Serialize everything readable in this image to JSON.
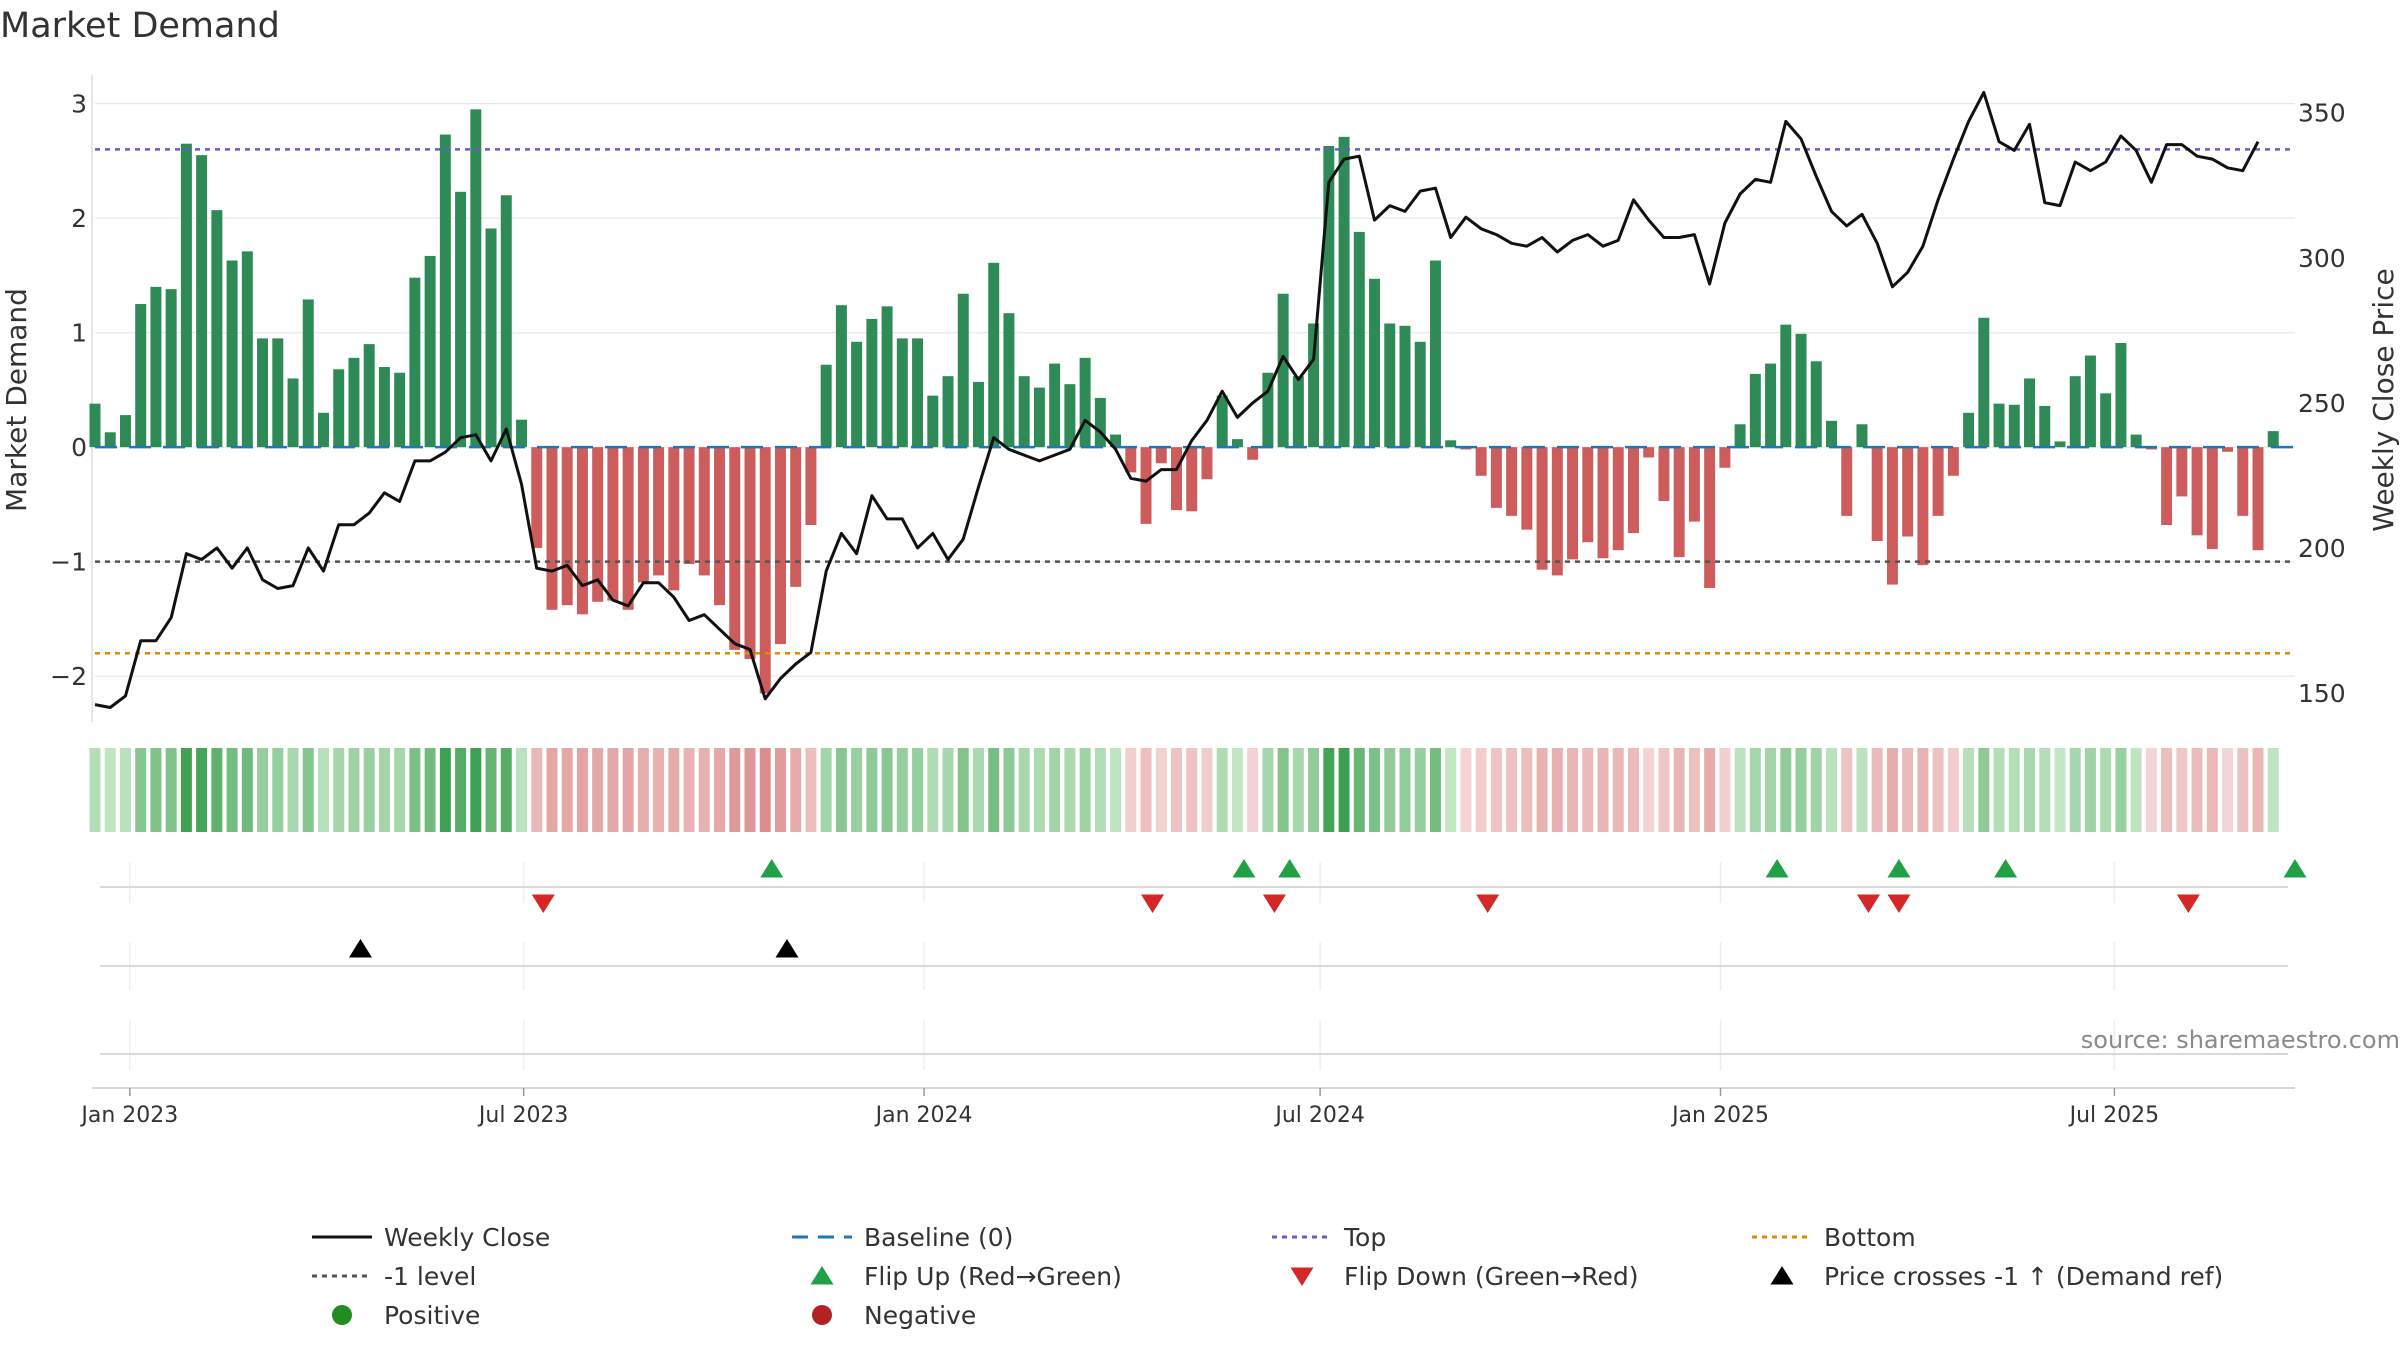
{
  "colors": {
    "positive_bar": "#2e8b57",
    "negative_bar": "#cd5c5c",
    "price_line": "#111111",
    "baseline": "#1f77b4",
    "top_line": "#6a5acd",
    "bottom_line": "#e08a00",
    "minus_one_line": "#555555",
    "flip_up": "#22a046",
    "flip_down": "#d62728",
    "cross_marker": "#000000",
    "positive_dot": "#228b22",
    "negative_dot": "#b22222",
    "grid": "#e8e8e8",
    "text": "#333333"
  },
  "chart_data": {
    "type": "bar+line",
    "title": "Market Demand",
    "ylabel": "Market Demand",
    "ylabel_right": "Weekly Close Price",
    "ylim": [
      -2.4,
      3.25
    ],
    "yticks": [
      -2,
      -1,
      0,
      1,
      2,
      3
    ],
    "ytick_labels": [
      "−2",
      "−1",
      "0",
      "1",
      "2",
      "3"
    ],
    "ylim_right": [
      140,
      363
    ],
    "yticks_right": [
      150,
      200,
      250,
      300,
      350
    ],
    "date_range": [
      "2022-12-16",
      "2025-09-22"
    ],
    "xticks": [
      {
        "date": "2023-01-01",
        "label": "Jan 2023"
      },
      {
        "date": "2023-07-01",
        "label": "Jul 2023"
      },
      {
        "date": "2024-01-01",
        "label": "Jan 2024"
      },
      {
        "date": "2024-07-01",
        "label": "Jul 2024"
      },
      {
        "date": "2025-01-01",
        "label": "Jan 2025"
      },
      {
        "date": "2025-07-01",
        "label": "Jul 2025"
      }
    ],
    "levels": {
      "top": 2.6,
      "bottom": -1.8,
      "minus_one": -1.0,
      "baseline": 0
    },
    "start_date": "2022-12-16",
    "week_days": 7,
    "demand": [
      0.38,
      0.13,
      0.28,
      1.25,
      1.4,
      1.38,
      2.65,
      2.55,
      2.07,
      1.63,
      1.71,
      0.95,
      0.95,
      0.6,
      1.29,
      0.3,
      0.68,
      0.78,
      0.9,
      0.7,
      0.65,
      1.48,
      1.67,
      2.73,
      2.23,
      2.95,
      1.91,
      2.2,
      0.24,
      -0.88,
      -1.42,
      -1.38,
      -1.46,
      -1.35,
      -1.34,
      -1.42,
      -1.18,
      -1.12,
      -1.25,
      -1.02,
      -1.12,
      -1.38,
      -1.77,
      -1.85,
      -2.15,
      -1.72,
      -1.22,
      -0.68,
      0.72,
      1.24,
      0.92,
      1.12,
      1.23,
      0.95,
      0.95,
      0.45,
      0.62,
      1.34,
      0.57,
      1.61,
      1.17,
      0.62,
      0.52,
      0.73,
      0.55,
      0.78,
      0.43,
      0.11,
      -0.22,
      -0.67,
      -0.14,
      -0.55,
      -0.56,
      -0.28,
      0.45,
      0.07,
      -0.11,
      0.65,
      1.34,
      0.62,
      1.08,
      2.63,
      2.71,
      1.88,
      1.47,
      1.08,
      1.06,
      0.92,
      1.63,
      0.06,
      -0.02,
      -0.25,
      -0.53,
      -0.6,
      -0.72,
      -1.07,
      -1.12,
      -0.98,
      -0.83,
      -0.97,
      -0.9,
      -0.75,
      -0.09,
      -0.47,
      -0.96,
      -0.65,
      -1.23,
      -0.18,
      0.2,
      0.64,
      0.73,
      1.07,
      0.99,
      0.75,
      0.23,
      -0.6,
      0.2,
      -0.82,
      -1.2,
      -0.78,
      -1.03,
      -0.6,
      -0.25,
      0.3,
      1.13,
      0.38,
      0.37,
      0.6,
      0.36,
      0.05,
      0.62,
      0.8,
      0.47,
      0.91,
      0.11,
      -0.02,
      -0.68,
      -0.43,
      -0.77,
      -0.89,
      -0.04,
      -0.6,
      -0.9,
      0.14
    ],
    "price": [
      146,
      145,
      149,
      168,
      168,
      176,
      198,
      196,
      200,
      193,
      200,
      189,
      186,
      187,
      200,
      192,
      208,
      208,
      212,
      219,
      216,
      230,
      230,
      233,
      238,
      239,
      230,
      241,
      222,
      193,
      192,
      194,
      187,
      189,
      182,
      180,
      188,
      188,
      183,
      175,
      177,
      172,
      167,
      165,
      148,
      155,
      160,
      164,
      192,
      205,
      198,
      218,
      210,
      210,
      200,
      205,
      196,
      203,
      221,
      238,
      234,
      232,
      230,
      232,
      234,
      244,
      240,
      234,
      224,
      223,
      227,
      227,
      237,
      244,
      254,
      245,
      250,
      254,
      266,
      258,
      265,
      326,
      334,
      335,
      313,
      318,
      316,
      323,
      324,
      307,
      314,
      310,
      308,
      305,
      304,
      307,
      302,
      306,
      308,
      304,
      306,
      320,
      313,
      307,
      307,
      308,
      291,
      312,
      322,
      327,
      326,
      347,
      341,
      328,
      316,
      311,
      315,
      305,
      290,
      295,
      304,
      320,
      334,
      347,
      357,
      340,
      337,
      346,
      319,
      318,
      333,
      330,
      333,
      342,
      337,
      326,
      339,
      339,
      335,
      334,
      331,
      330,
      340
    ],
    "flip_up_dates": [
      "2023-10-23",
      "2024-05-27",
      "2024-06-17",
      "2025-01-27",
      "2025-03-24",
      "2025-05-12",
      "2025-09-22"
    ],
    "flip_down_dates": [
      "2023-07-10",
      "2024-04-15",
      "2024-06-10",
      "2024-09-16",
      "2025-03-10",
      "2025-03-24",
      "2025-08-04"
    ],
    "cross_dates": [
      "2023-04-17",
      "2023-10-30"
    ],
    "legend": [
      {
        "label": "Weekly Close",
        "kind": "solid",
        "color_key": "price_line"
      },
      {
        "label": "Baseline (0)",
        "kind": "dash",
        "color_key": "baseline"
      },
      {
        "label": "Top",
        "kind": "dot",
        "color_key": "top_line"
      },
      {
        "label": "Bottom",
        "kind": "dot",
        "color_key": "bottom_line"
      },
      {
        "label": "-1 level",
        "kind": "dot",
        "color_key": "minus_one_line"
      },
      {
        "label": "Flip Up (Red→Green)",
        "kind": "tri-up",
        "color_key": "flip_up"
      },
      {
        "label": "Flip Down (Green→Red)",
        "kind": "tri-down",
        "color_key": "flip_down"
      },
      {
        "label": "Price crosses -1 ↑ (Demand ref)",
        "kind": "tri-up",
        "color_key": "cross_marker"
      },
      {
        "label": "Positive",
        "kind": "circle",
        "color_key": "positive_dot"
      },
      {
        "label": "Negative",
        "kind": "circle",
        "color_key": "negative_dot"
      }
    ],
    "source": "source: sharemaestro.com"
  }
}
